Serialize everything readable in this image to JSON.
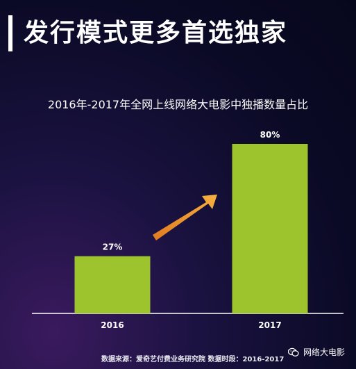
{
  "page_title": "发行模式更多首选独家",
  "chart_data": {
    "type": "bar",
    "title": "2016年-2017年全网上线网络大电影中独播数量占比",
    "categories": [
      "2016",
      "2017"
    ],
    "values": [
      27,
      80
    ],
    "data_labels": [
      "27%",
      "80%"
    ],
    "ylim": [
      0,
      100
    ],
    "bar_color": "#9dc42c",
    "trend_arrow": "up-right",
    "arrow_color": "#f0a030"
  },
  "footer": {
    "source": "数据来源：爱奇艺付费业务研究院  数据时段：2016-2017",
    "wechat_label": "网络大电影",
    "wechat_icon": "wechat-icon"
  },
  "colors": {
    "background": "#0b0a26",
    "bar": "#9dc42c",
    "arrow": "#f0a030",
    "text": "#ffffff"
  }
}
